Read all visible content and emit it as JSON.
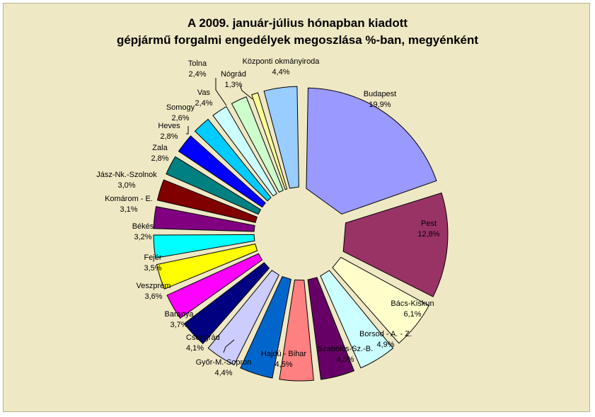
{
  "chart_data": {
    "type": "pie",
    "title_lines": [
      "A  2009. január-július hónapban kiadott",
      "gépjármű forgalmi engedélyek megoszlása %-ban, megyénként"
    ],
    "legend": "none",
    "slices": [
      {
        "label": "Budapest",
        "value": 19.9,
        "value_label": "19,9%",
        "color": "#9999ff"
      },
      {
        "label": "Pest",
        "value": 12.8,
        "value_label": "12,8%",
        "color": "#993366"
      },
      {
        "label": "Bács-Kiskun",
        "value": 6.1,
        "value_label": "6,1%",
        "color": "#ffffcc"
      },
      {
        "label": "Borsod - A. - Z.",
        "value": 4.9,
        "value_label": "4,9%",
        "color": "#ccffff"
      },
      {
        "label": "Szabolcs-Sz.-B.",
        "value": 4.5,
        "value_label": "4,5%",
        "color": "#660066"
      },
      {
        "label": "Hajdú - Bihar",
        "value": 4.5,
        "value_label": "4,5%",
        "color": "#ff8080"
      },
      {
        "label": "Győr-M.-Sopron",
        "value": 4.4,
        "value_label": "4,4%",
        "color": "#0066cc"
      },
      {
        "label": "Csongrád",
        "value": 4.1,
        "value_label": "4,1%",
        "color": "#ccccff"
      },
      {
        "label": "Baranya",
        "value": 3.7,
        "value_label": "3,7%",
        "color": "#000080"
      },
      {
        "label": "Veszprém",
        "value": 3.6,
        "value_label": "3,6%",
        "color": "#ff00ff"
      },
      {
        "label": "Fejér",
        "value": 3.5,
        "value_label": "3,5%",
        "color": "#ffff00"
      },
      {
        "label": "Békés",
        "value": 3.2,
        "value_label": "3,2%",
        "color": "#00ffff"
      },
      {
        "label": "Komárom - E.",
        "value": 3.1,
        "value_label": "3,1%",
        "color": "#800080"
      },
      {
        "label": "Jász-Nk.-Szolnok",
        "value": 3.0,
        "value_label": "3,0%",
        "color": "#800000"
      },
      {
        "label": "Zala",
        "value": 2.8,
        "value_label": "2,8%",
        "color": "#008080"
      },
      {
        "label": "Heves",
        "value": 2.8,
        "value_label": "2,8%",
        "color": "#0000ff"
      },
      {
        "label": "Somogy",
        "value": 2.6,
        "value_label": "2,6%",
        "color": "#00ccff"
      },
      {
        "label": "Vas",
        "value": 2.4,
        "value_label": "2,4%",
        "color": "#ccffff"
      },
      {
        "label": "Tolna",
        "value": 2.4,
        "value_label": "2,4%",
        "color": "#ccffcc"
      },
      {
        "label": "Nógrád",
        "value": 1.3,
        "value_label": "1,3%",
        "color": "#ffff99"
      },
      {
        "label": "Központi okmányiroda",
        "value": 4.4,
        "value_label": "4,4%",
        "color": "#99ccff"
      }
    ]
  }
}
